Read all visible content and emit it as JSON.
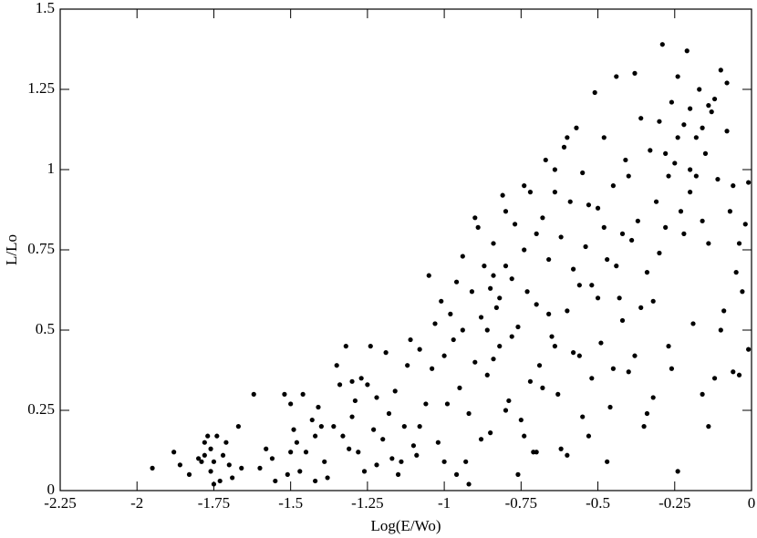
{
  "chart_data": {
    "type": "scatter",
    "x_label": "Log(E/Wo)",
    "y_label": "L/Lo",
    "xlim": [
      -2.25,
      0
    ],
    "ylim": [
      0,
      1.5
    ],
    "xticks": [
      -2.25,
      -2,
      -1.75,
      -1.5,
      -1.25,
      -1,
      -0.75,
      -0.5,
      -0.25,
      0
    ],
    "yticks": [
      0,
      0.25,
      0.5,
      0.75,
      1,
      1.25,
      1.5
    ],
    "color": "#000000",
    "x": [
      -1.95,
      -1.88,
      -1.86,
      -1.83,
      -1.8,
      -1.79,
      -1.78,
      -1.77,
      -1.76,
      -1.76,
      -1.75,
      -1.74,
      -1.73,
      -1.72,
      -1.71,
      -1.7,
      -1.69,
      -1.67,
      -1.75,
      -1.78,
      -1.66,
      -1.62,
      -1.6,
      -1.58,
      -1.56,
      -1.55,
      -1.52,
      -1.51,
      -1.5,
      -1.49,
      -1.48,
      -1.47,
      -1.46,
      -1.45,
      -1.43,
      -1.42,
      -1.41,
      -1.4,
      -1.39,
      -1.38,
      -1.36,
      -1.35,
      -1.34,
      -1.33,
      -1.32,
      -1.31,
      -1.3,
      -1.29,
      -1.28,
      -1.27,
      -1.26,
      -1.25,
      -1.24,
      -1.23,
      -1.22,
      -1.2,
      -1.19,
      -1.18,
      -1.17,
      -1.16,
      -1.15,
      -1.13,
      -1.12,
      -1.11,
      -1.1,
      -1.09,
      -1.08,
      -1.05,
      -1.04,
      -1.03,
      -1.02,
      -1.01,
      -1.0,
      -0.99,
      -0.98,
      -0.97,
      -0.96,
      -0.95,
      -0.94,
      -0.93,
      -0.92,
      -0.91,
      -0.9,
      -0.89,
      -0.88,
      -0.87,
      -0.86,
      -0.85,
      -0.85,
      -0.84,
      -0.83,
      -0.82,
      -0.81,
      -0.8,
      -0.79,
      -0.78,
      -0.77,
      -0.76,
      -0.75,
      -0.74,
      -0.73,
      -0.72,
      -0.71,
      -0.7,
      -0.69,
      -0.68,
      -0.67,
      -0.66,
      -0.65,
      -0.64,
      -0.63,
      -0.62,
      -0.61,
      -0.6,
      -0.59,
      -0.58,
      -0.57,
      -0.56,
      -0.55,
      -0.54,
      -0.53,
      -0.52,
      -0.51,
      -0.5,
      -0.49,
      -0.48,
      -0.47,
      -0.46,
      -0.45,
      -0.44,
      -0.43,
      -0.42,
      -0.41,
      -0.4,
      -0.39,
      -0.38,
      -0.37,
      -0.36,
      -0.35,
      -0.34,
      -0.33,
      -0.32,
      -0.31,
      -0.3,
      -0.29,
      -0.28,
      -0.27,
      -0.26,
      -0.25,
      -0.24,
      -0.24,
      -0.23,
      -0.22,
      -0.21,
      -0.2,
      -0.19,
      -0.18,
      -0.17,
      -0.16,
      -0.15,
      -0.14,
      -0.13,
      -0.12,
      -0.11,
      -0.1,
      -0.09,
      -0.08,
      -0.07,
      -0.06,
      -0.05,
      -0.04,
      -0.03,
      -0.02,
      -0.01,
      -0.01,
      -0.9,
      -0.92,
      -0.88,
      -0.8,
      -0.78,
      -0.76,
      -0.7,
      -0.68,
      -0.66,
      -0.62,
      -0.58,
      -0.55,
      -0.53,
      -0.5,
      -0.47,
      -0.45,
      -0.42,
      -0.4,
      -0.36,
      -0.34,
      -0.3,
      -0.27,
      -0.22,
      -0.2,
      -0.18,
      -0.16,
      -0.14,
      -0.12,
      -0.1,
      -0.06,
      -1.0,
      -1.06,
      -0.96,
      -0.86,
      -0.84,
      -0.82,
      -0.74,
      -0.72,
      -0.64,
      -0.6,
      -0.56,
      -0.52,
      -0.48,
      -0.44,
      -0.38,
      -0.32,
      -0.28,
      -0.26,
      -0.24,
      -0.2,
      -0.16,
      -0.14,
      -0.08,
      -0.04,
      -0.6,
      -0.64,
      -0.7,
      -0.74,
      -0.8,
      -0.84,
      -0.94,
      -1.08,
      -1.14,
      -1.22,
      -1.3,
      -1.42,
      -1.5
    ],
    "values": [
      0.07,
      0.12,
      0.08,
      0.05,
      0.1,
      0.09,
      0.15,
      0.17,
      0.13,
      0.06,
      0.09,
      0.17,
      0.03,
      0.11,
      0.15,
      0.08,
      0.04,
      0.2,
      0.02,
      0.11,
      0.07,
      0.3,
      0.07,
      0.13,
      0.1,
      0.03,
      0.3,
      0.05,
      0.27,
      0.19,
      0.15,
      0.06,
      0.3,
      0.12,
      0.22,
      0.17,
      0.26,
      0.2,
      0.09,
      0.04,
      0.2,
      0.39,
      0.33,
      0.17,
      0.45,
      0.13,
      0.23,
      0.28,
      0.12,
      0.35,
      0.06,
      0.33,
      0.45,
      0.19,
      0.29,
      0.16,
      0.43,
      0.24,
      0.1,
      0.31,
      0.05,
      0.2,
      0.39,
      0.47,
      0.14,
      0.11,
      0.2,
      0.67,
      0.38,
      0.52,
      0.15,
      0.59,
      0.42,
      0.27,
      0.55,
      0.47,
      0.65,
      0.32,
      0.73,
      0.09,
      0.24,
      0.62,
      0.4,
      0.82,
      0.54,
      0.7,
      0.36,
      0.18,
      0.63,
      0.77,
      0.57,
      0.45,
      0.92,
      0.7,
      0.28,
      0.66,
      0.83,
      0.51,
      0.22,
      0.75,
      0.62,
      0.93,
      0.12,
      0.58,
      0.39,
      0.85,
      1.03,
      0.72,
      0.48,
      0.93,
      0.3,
      0.79,
      1.07,
      0.56,
      0.9,
      0.69,
      1.13,
      0.42,
      0.99,
      0.76,
      0.17,
      0.64,
      1.24,
      0.88,
      0.46,
      1.1,
      0.72,
      0.26,
      0.95,
      1.29,
      0.6,
      0.8,
      1.03,
      0.37,
      0.78,
      1.3,
      0.84,
      1.16,
      0.2,
      0.68,
      1.06,
      0.29,
      0.9,
      1.15,
      1.39,
      0.82,
      0.45,
      1.21,
      1.02,
      0.06,
      1.29,
      0.87,
      1.14,
      1.37,
      0.93,
      0.52,
      1.1,
      1.25,
      0.3,
      1.05,
      0.77,
      1.18,
      0.35,
      0.97,
      1.31,
      0.56,
      1.12,
      0.87,
      0.37,
      0.68,
      0.77,
      0.62,
      0.83,
      0.44,
      0.96,
      0.85,
      0.02,
      0.16,
      0.25,
      0.48,
      0.05,
      0.12,
      0.32,
      0.55,
      0.13,
      0.43,
      0.23,
      0.89,
      0.6,
      0.09,
      0.38,
      0.53,
      0.98,
      0.57,
      0.24,
      0.74,
      0.98,
      0.8,
      1.19,
      0.98,
      1.13,
      0.2,
      1.22,
      0.5,
      0.95,
      0.09,
      0.27,
      0.05,
      0.5,
      0.41,
      0.6,
      0.17,
      0.34,
      0.45,
      0.11,
      0.64,
      0.35,
      0.82,
      0.7,
      0.42,
      0.59,
      1.05,
      0.38,
      1.1,
      1.0,
      0.84,
      1.2,
      1.27,
      0.36,
      1.1,
      1.0,
      0.8,
      0.95,
      0.87,
      0.67,
      0.5,
      0.44,
      0.09,
      0.08,
      0.34,
      0.03,
      0.12
    ]
  }
}
